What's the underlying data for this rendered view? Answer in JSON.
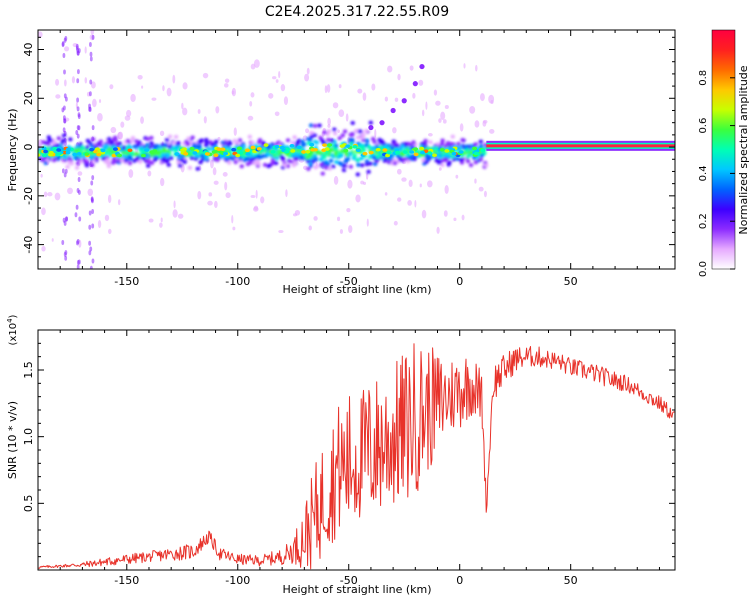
{
  "title": "C2E4.2025.317.22.55.R09",
  "colors": {
    "snr_line": "#e8322a",
    "colorbar": [
      "#ff0040",
      "#ff2020",
      "#ff6a00",
      "#ffc800",
      "#c8ff00",
      "#3cff3c",
      "#00ffb4",
      "#00c8ff",
      "#0064ff",
      "#3c00ff",
      "#8c2cff",
      "#e6aaff",
      "#ffffff"
    ],
    "track_fill": "#ff2040",
    "axis": "#000000"
  },
  "chart_data": [
    {
      "type": "heatmap",
      "name": "spectrogram",
      "xlabel": "Height of straight line (km)",
      "ylabel": "Frequency (Hz)",
      "xlim": [
        -190,
        97
      ],
      "ylim": [
        -50,
        48
      ],
      "x_ticks": [
        -150,
        -100,
        -50,
        0,
        50
      ],
      "y_ticks": [
        40,
        20,
        0,
        -20,
        -40
      ],
      "colorbar": {
        "label": "Normalized spectral amplitude",
        "range": [
          0.0,
          1.0
        ],
        "ticks": [
          0.0,
          0.2,
          0.4,
          0.6,
          0.8
        ]
      },
      "tone_track": {
        "x_start": 12,
        "x_end": 97,
        "frequency": 0.5,
        "amplitude": 1.0
      },
      "scattered_tone": {
        "x_start": -190,
        "x_end": 12,
        "frequency_center": -2,
        "frequency_spread": 5
      },
      "arc_points": [
        {
          "x": -40,
          "y": 8
        },
        {
          "x": -35,
          "y": 10
        },
        {
          "x": -30,
          "y": 15
        },
        {
          "x": -25,
          "y": 19
        },
        {
          "x": -20,
          "y": 26
        },
        {
          "x": -17,
          "y": 33
        }
      ]
    },
    {
      "type": "line",
      "name": "snr",
      "xlabel": "Height of straight line (km)",
      "ylabel": "SNR (10 * v/v)",
      "multiplier_label": "(x10",
      "multiplier_exp": "4",
      "multiplier_close": ")",
      "xlim": [
        -190,
        97
      ],
      "ylim": [
        0,
        1.8
      ],
      "x_ticks": [
        -150,
        -100,
        -50,
        0,
        50
      ],
      "y_ticks": [
        0.5,
        1.0,
        1.5
      ],
      "series": [
        {
          "name": "SNR",
          "x": [
            -190,
            -180,
            -170,
            -160,
            -150,
            -140,
            -130,
            -120,
            -113,
            -108,
            -100,
            -90,
            -80,
            -75,
            -70,
            -65,
            -60,
            -55,
            -50,
            -45,
            -40,
            -35,
            -30,
            -25,
            -20,
            -15,
            -10,
            -5,
            0,
            5,
            10,
            12,
            15,
            20,
            25,
            30,
            35,
            40,
            45,
            50,
            55,
            60,
            65,
            70,
            75,
            80,
            85,
            90,
            97
          ],
          "y": [
            0.02,
            0.03,
            0.04,
            0.06,
            0.08,
            0.1,
            0.12,
            0.14,
            0.25,
            0.12,
            0.08,
            0.07,
            0.1,
            0.15,
            0.25,
            0.4,
            0.6,
            0.75,
            0.8,
            0.85,
            0.9,
            0.95,
            1.0,
            1.05,
            1.15,
            1.2,
            1.25,
            1.3,
            1.35,
            1.4,
            1.3,
            0.45,
            1.4,
            1.5,
            1.58,
            1.6,
            1.6,
            1.58,
            1.56,
            1.52,
            1.5,
            1.48,
            1.45,
            1.42,
            1.4,
            1.35,
            1.3,
            1.25,
            1.15
          ],
          "amp": [
            0.01,
            0.01,
            0.02,
            0.03,
            0.04,
            0.04,
            0.05,
            0.06,
            0.05,
            0.05,
            0.04,
            0.04,
            0.06,
            0.1,
            0.25,
            0.4,
            0.45,
            0.5,
            0.55,
            0.5,
            0.55,
            0.55,
            0.55,
            0.6,
            0.6,
            0.5,
            0.4,
            0.3,
            0.3,
            0.25,
            0.2,
            0.05,
            0.15,
            0.12,
            0.1,
            0.08,
            0.08,
            0.07,
            0.07,
            0.07,
            0.07,
            0.07,
            0.07,
            0.07,
            0.06,
            0.06,
            0.06,
            0.06,
            0.05
          ]
        }
      ]
    }
  ]
}
